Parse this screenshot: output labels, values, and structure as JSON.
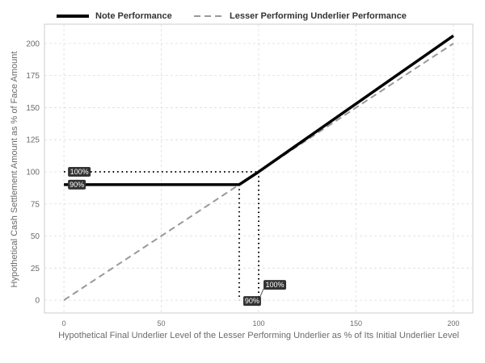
{
  "chart_data": {
    "type": "line",
    "title": "",
    "xlabel": "Hypothetical Final Underlier Level of the Lesser Performing Underlier as % of Its Initial Underlier Level",
    "ylabel": "Hypothetical Cash Settlement Amount as % of Face Amount",
    "xlim": [
      -10,
      210
    ],
    "ylim": [
      -10,
      215
    ],
    "x_ticks": [
      0,
      50,
      100,
      150,
      200
    ],
    "y_ticks": [
      0,
      25,
      50,
      75,
      100,
      125,
      150,
      175,
      200
    ],
    "grid": true,
    "legend_position": "top",
    "series": [
      {
        "name": "Note Performance",
        "style": "solid",
        "color": "#000000",
        "points": [
          [
            0,
            90
          ],
          [
            90,
            90
          ],
          [
            100,
            100
          ],
          [
            200,
            206
          ]
        ]
      },
      {
        "name": "Lesser Performing Underlier Performance",
        "style": "dashed",
        "color": "#999999",
        "points": [
          [
            0,
            0
          ],
          [
            200,
            200
          ]
        ]
      }
    ],
    "reference_lines": [
      {
        "points": [
          [
            0,
            100
          ],
          [
            100,
            100
          ]
        ]
      },
      {
        "points": [
          [
            100,
            100
          ],
          [
            100,
            0
          ]
        ]
      },
      {
        "points": [
          [
            90,
            90
          ],
          [
            90,
            0
          ]
        ]
      }
    ],
    "annotations": [
      {
        "text": "100%",
        "x": 0,
        "y": 100,
        "anchor": "y-axis"
      },
      {
        "text": "90%",
        "x": 0,
        "y": 90,
        "anchor": "y-axis"
      },
      {
        "text": "90%",
        "x": 90,
        "y": 0,
        "anchor": "x-axis"
      },
      {
        "text": "100%",
        "x": 100,
        "y": 0,
        "anchor": "x-axis"
      }
    ]
  }
}
